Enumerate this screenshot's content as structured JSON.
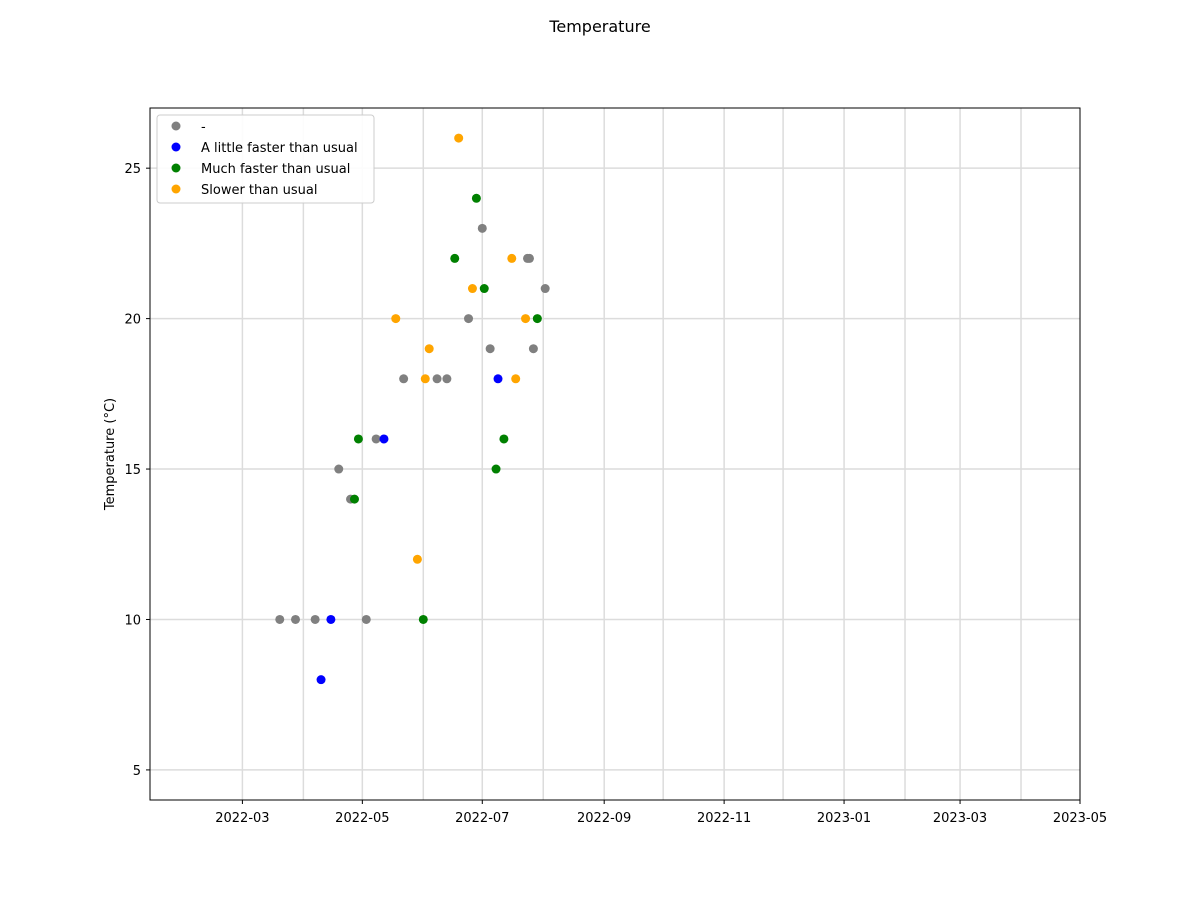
{
  "chart_data": {
    "type": "scatter",
    "title": "Temperature",
    "xlabel": "",
    "ylabel": "Temperature (°C)",
    "x_axis_type": "date",
    "xlim": [
      "2022-01-13",
      "2023-05-01"
    ],
    "ylim": [
      4,
      27
    ],
    "x_ticks": [
      "2022-03",
      "2022-05",
      "2022-07",
      "2022-09",
      "2022-11",
      "2023-01",
      "2023-03",
      "2023-05"
    ],
    "y_ticks": [
      5,
      10,
      15,
      20,
      25
    ],
    "grid": true,
    "legend_position": "upper-left",
    "series": [
      {
        "name": "-",
        "color": "#808080",
        "points": [
          {
            "x": "2022-03-20",
            "y": 10
          },
          {
            "x": "2022-03-28",
            "y": 10
          },
          {
            "x": "2022-04-07",
            "y": 10
          },
          {
            "x": "2022-04-19",
            "y": 15
          },
          {
            "x": "2022-04-25",
            "y": 14
          },
          {
            "x": "2022-05-03",
            "y": 10
          },
          {
            "x": "2022-05-08",
            "y": 16
          },
          {
            "x": "2022-05-22",
            "y": 18
          },
          {
            "x": "2022-06-08",
            "y": 18
          },
          {
            "x": "2022-06-13",
            "y": 18
          },
          {
            "x": "2022-06-24",
            "y": 20
          },
          {
            "x": "2022-07-01",
            "y": 23
          },
          {
            "x": "2022-07-05",
            "y": 19
          },
          {
            "x": "2022-07-24",
            "y": 22
          },
          {
            "x": "2022-07-25",
            "y": 22
          },
          {
            "x": "2022-07-27",
            "y": 19
          },
          {
            "x": "2022-08-02",
            "y": 21
          }
        ]
      },
      {
        "name": "A little faster than usual",
        "color": "#0000ff",
        "points": [
          {
            "x": "2022-04-10",
            "y": 8
          },
          {
            "x": "2022-04-15",
            "y": 10
          },
          {
            "x": "2022-05-12",
            "y": 16
          },
          {
            "x": "2022-07-09",
            "y": 18
          }
        ]
      },
      {
        "name": "Much faster than usual",
        "color": "#008000",
        "points": [
          {
            "x": "2022-04-27",
            "y": 14
          },
          {
            "x": "2022-04-29",
            "y": 16
          },
          {
            "x": "2022-06-01",
            "y": 10
          },
          {
            "x": "2022-06-17",
            "y": 22
          },
          {
            "x": "2022-06-28",
            "y": 24
          },
          {
            "x": "2022-07-02",
            "y": 21
          },
          {
            "x": "2022-07-08",
            "y": 15
          },
          {
            "x": "2022-07-12",
            "y": 16
          },
          {
            "x": "2022-07-29",
            "y": 20
          }
        ]
      },
      {
        "name": "Slower than usual",
        "color": "#ffa500",
        "points": [
          {
            "x": "2022-05-18",
            "y": 20
          },
          {
            "x": "2022-05-29",
            "y": 12
          },
          {
            "x": "2022-06-02",
            "y": 18
          },
          {
            "x": "2022-06-04",
            "y": 19
          },
          {
            "x": "2022-06-19",
            "y": 26
          },
          {
            "x": "2022-06-26",
            "y": 21
          },
          {
            "x": "2022-07-16",
            "y": 22
          },
          {
            "x": "2022-07-18",
            "y": 18
          },
          {
            "x": "2022-07-23",
            "y": 20
          }
        ]
      }
    ]
  }
}
